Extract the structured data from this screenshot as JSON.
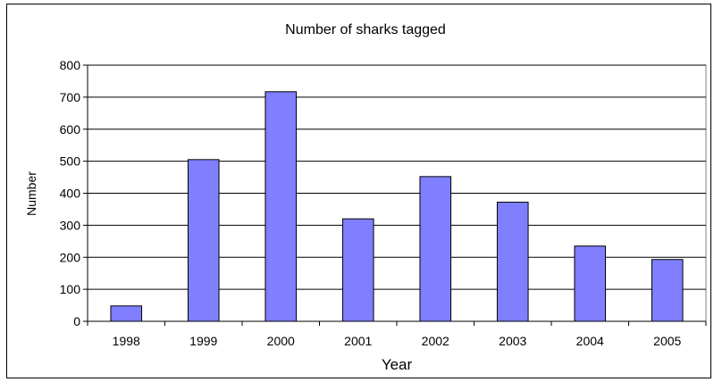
{
  "chart_data": {
    "type": "bar",
    "title": "Number of sharks tagged",
    "xlabel": "Year",
    "ylabel": "Number",
    "categories": [
      "1998",
      "1999",
      "2000",
      "2001",
      "2002",
      "2003",
      "2004",
      "2005"
    ],
    "values": [
      48,
      505,
      717,
      320,
      452,
      372,
      235,
      193
    ],
    "ylim": [
      0,
      800
    ],
    "yticks": [
      0,
      100,
      200,
      300,
      400,
      500,
      600,
      700,
      800
    ],
    "grid": true,
    "legend": "none",
    "bar_color": "#7f7fff",
    "bar_edge_color": "#000000"
  }
}
